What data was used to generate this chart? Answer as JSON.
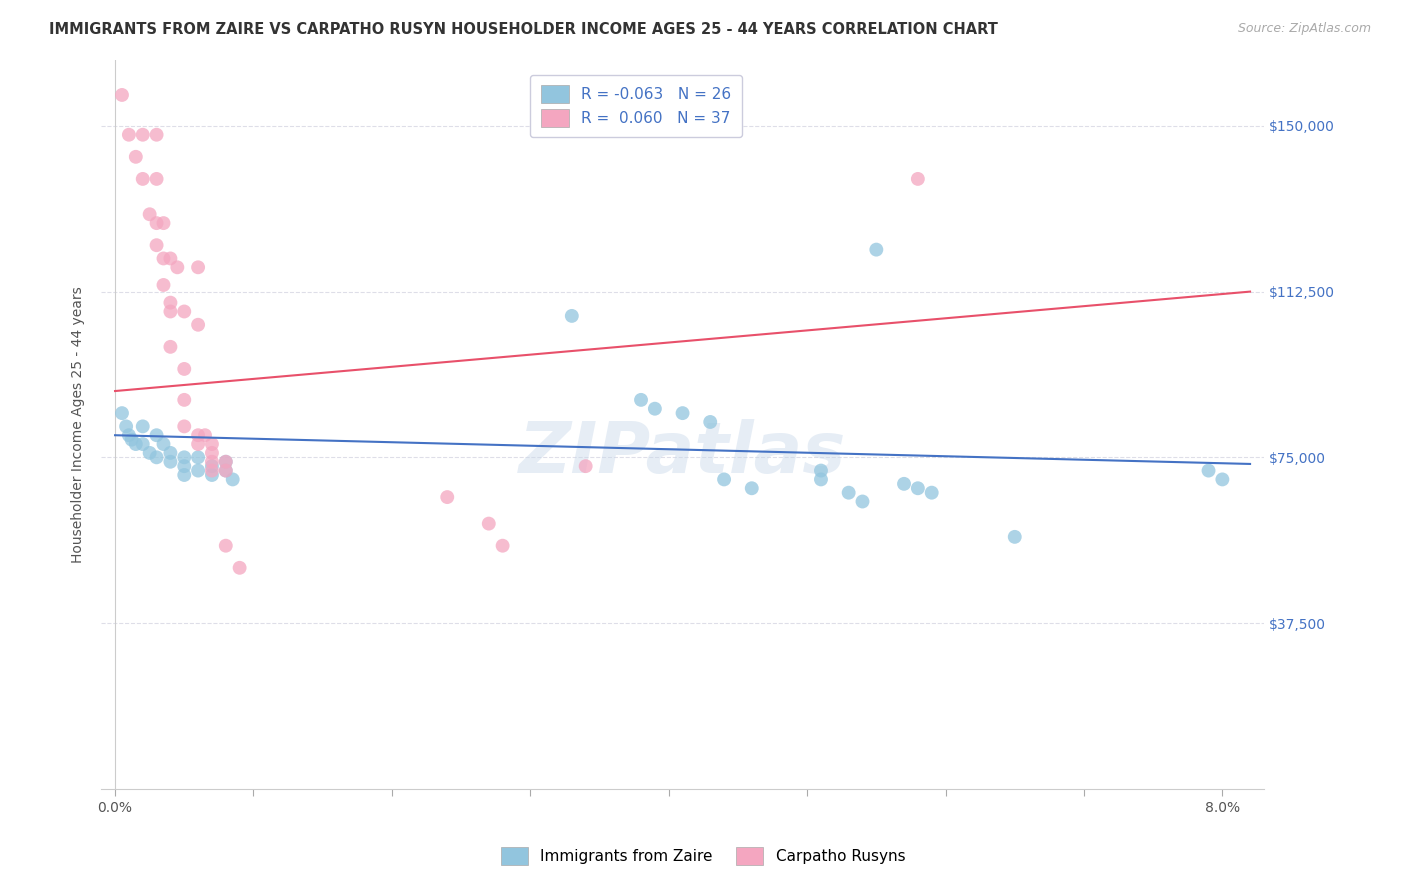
{
  "title": "IMMIGRANTS FROM ZAIRE VS CARPATHO RUSYN HOUSEHOLDER INCOME AGES 25 - 44 YEARS CORRELATION CHART",
  "source": "Source: ZipAtlas.com",
  "ylabel": "Householder Income Ages 25 - 44 years",
  "xlabel_ticks": [
    "0.0%",
    "",
    "",
    "",
    "",
    "",
    "",
    "",
    "8.0%"
  ],
  "xlabel_tick_vals": [
    0.0,
    0.01,
    0.02,
    0.03,
    0.04,
    0.05,
    0.06,
    0.07,
    0.08
  ],
  "ytick_labels": [
    "$37,500",
    "$75,000",
    "$112,500",
    "$150,000"
  ],
  "ytick_vals": [
    37500,
    75000,
    112500,
    150000
  ],
  "ylim": [
    0,
    165000
  ],
  "xlim": [
    -0.001,
    0.083
  ],
  "watermark": "ZIPatlas",
  "background_color": "#ffffff",
  "grid_color": "#dedee8",
  "blue_color": "#92c5de",
  "pink_color": "#f4a6c0",
  "blue_line_color": "#4472c4",
  "pink_line_color": "#e8506a",
  "blue_scatter": [
    [
      0.0005,
      85000
    ],
    [
      0.0008,
      82000
    ],
    [
      0.001,
      80000
    ],
    [
      0.0012,
      79000
    ],
    [
      0.0015,
      78000
    ],
    [
      0.002,
      82000
    ],
    [
      0.002,
      78000
    ],
    [
      0.0025,
      76000
    ],
    [
      0.003,
      80000
    ],
    [
      0.003,
      75000
    ],
    [
      0.0035,
      78000
    ],
    [
      0.004,
      76000
    ],
    [
      0.004,
      74000
    ],
    [
      0.005,
      75000
    ],
    [
      0.005,
      73000
    ],
    [
      0.005,
      71000
    ],
    [
      0.006,
      75000
    ],
    [
      0.006,
      72000
    ],
    [
      0.007,
      73000
    ],
    [
      0.007,
      71000
    ],
    [
      0.008,
      74000
    ],
    [
      0.008,
      72000
    ],
    [
      0.0085,
      70000
    ],
    [
      0.033,
      107000
    ],
    [
      0.038,
      88000
    ],
    [
      0.039,
      86000
    ],
    [
      0.041,
      85000
    ],
    [
      0.043,
      83000
    ],
    [
      0.044,
      70000
    ],
    [
      0.046,
      68000
    ],
    [
      0.051,
      72000
    ],
    [
      0.051,
      70000
    ],
    [
      0.053,
      67000
    ],
    [
      0.054,
      65000
    ],
    [
      0.055,
      122000
    ],
    [
      0.057,
      69000
    ],
    [
      0.058,
      68000
    ],
    [
      0.059,
      67000
    ],
    [
      0.065,
      57000
    ],
    [
      0.079,
      72000
    ],
    [
      0.08,
      70000
    ]
  ],
  "pink_scatter": [
    [
      0.0005,
      157000
    ],
    [
      0.001,
      148000
    ],
    [
      0.0015,
      143000
    ],
    [
      0.002,
      148000
    ],
    [
      0.002,
      138000
    ],
    [
      0.0025,
      130000
    ],
    [
      0.003,
      148000
    ],
    [
      0.003,
      138000
    ],
    [
      0.003,
      128000
    ],
    [
      0.003,
      123000
    ],
    [
      0.0035,
      128000
    ],
    [
      0.0035,
      120000
    ],
    [
      0.0035,
      114000
    ],
    [
      0.004,
      120000
    ],
    [
      0.004,
      110000
    ],
    [
      0.004,
      108000
    ],
    [
      0.004,
      100000
    ],
    [
      0.0045,
      118000
    ],
    [
      0.005,
      108000
    ],
    [
      0.005,
      95000
    ],
    [
      0.005,
      88000
    ],
    [
      0.005,
      82000
    ],
    [
      0.006,
      118000
    ],
    [
      0.006,
      105000
    ],
    [
      0.006,
      80000
    ],
    [
      0.006,
      78000
    ],
    [
      0.0065,
      80000
    ],
    [
      0.007,
      78000
    ],
    [
      0.007,
      76000
    ],
    [
      0.007,
      74000
    ],
    [
      0.007,
      72000
    ],
    [
      0.008,
      74000
    ],
    [
      0.008,
      72000
    ],
    [
      0.008,
      55000
    ],
    [
      0.009,
      50000
    ],
    [
      0.024,
      66000
    ],
    [
      0.027,
      60000
    ],
    [
      0.028,
      55000
    ],
    [
      0.034,
      73000
    ],
    [
      0.058,
      138000
    ]
  ],
  "blue_line_x": [
    0.0,
    0.082
  ],
  "blue_line_y": [
    80000,
    73500
  ],
  "pink_line_x": [
    0.0,
    0.082
  ],
  "pink_line_y": [
    90000,
    112500
  ],
  "marker_size": 100,
  "title_fontsize": 10.5,
  "source_fontsize": 9,
  "tick_fontsize": 10,
  "ylabel_fontsize": 10,
  "legend_fontsize": 11
}
